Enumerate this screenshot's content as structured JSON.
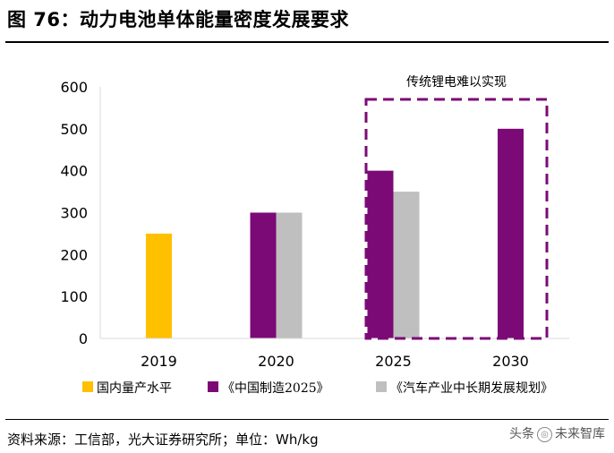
{
  "title": "图 76：动力电池单体能量密度发展要求",
  "footer": "资料来源：工信部，光大证券研究所；单位：Wh/kg",
  "watermark": {
    "prefix": "头条",
    "name": "未来智库"
  },
  "chart_data": {
    "type": "bar",
    "categories": [
      "2019",
      "2020",
      "2025",
      "2030"
    ],
    "ylim": [
      0,
      600
    ],
    "yticks": [
      0,
      100,
      200,
      300,
      400,
      500,
      600
    ],
    "series": [
      {
        "name": "国内量产水平",
        "color": "#FFC000",
        "values": [
          250,
          null,
          null,
          null
        ]
      },
      {
        "name": "《中国制造2025》",
        "color": "#7B0A76",
        "values": [
          null,
          300,
          400,
          500
        ]
      },
      {
        "name": "《汽车产业中长期发展规划》",
        "color": "#BFBFBF",
        "values": [
          null,
          300,
          350,
          null
        ]
      }
    ],
    "annotation": "传统锂电难以实现",
    "legend_position": "bottom",
    "grid": false
  }
}
